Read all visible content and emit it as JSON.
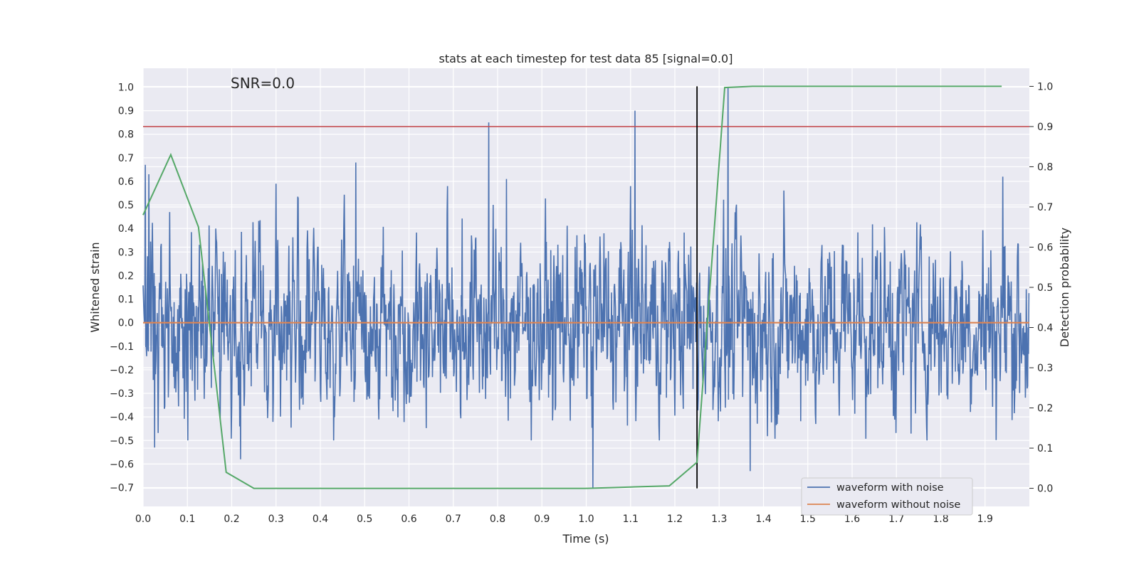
{
  "chart_data": {
    "type": "line",
    "title": "stats at each timestep for test data 85 [signal=0.0]",
    "annotation": "SNR=0.0",
    "xlabel": "Time (s)",
    "ylabel_left": "Whitened strain",
    "ylabel_right": "Detection probability",
    "xlim": [
      0.0,
      2.0
    ],
    "ylim_left": [
      -0.78,
      1.08
    ],
    "ylim_right": [
      -0.045,
      1.045
    ],
    "x_ticks": [
      "0.0",
      "0.1",
      "0.2",
      "0.3",
      "0.4",
      "0.5",
      "0.6",
      "0.7",
      "0.8",
      "0.9",
      "1.0",
      "1.1",
      "1.2",
      "1.3",
      "1.4",
      "1.5",
      "1.6",
      "1.7",
      "1.8",
      "1.9"
    ],
    "y_left_ticks": [
      "−0.7",
      "−0.6",
      "−0.5",
      "−0.4",
      "−0.3",
      "−0.2",
      "−0.1",
      "0.0",
      "0.1",
      "0.2",
      "0.3",
      "0.4",
      "0.5",
      "0.6",
      "0.7",
      "0.8",
      "0.9",
      "1.0"
    ],
    "y_right_ticks": [
      "0.0",
      "0.1",
      "0.2",
      "0.3",
      "0.4",
      "0.5",
      "0.6",
      "0.7",
      "0.8",
      "0.9",
      "1.0"
    ],
    "grid": true,
    "legend_position": "bottom-right",
    "series": [
      {
        "name": "waveform with noise",
        "axis": "left",
        "color": "#4c72b0",
        "kind": "noise",
        "n_samples": 2000,
        "spikes": [
          [
            0.005,
            0.67
          ],
          [
            0.013,
            0.63
          ],
          [
            0.78,
            0.85
          ],
          [
            1.11,
            0.9
          ],
          [
            1.32,
            1.0
          ],
          [
            1.015,
            -0.7
          ],
          [
            0.22,
            -0.58
          ],
          [
            1.37,
            -0.63
          ],
          [
            0.026,
            -0.53
          ],
          [
            0.48,
            0.68
          ],
          [
            0.82,
            0.61
          ],
          [
            1.94,
            0.62
          ],
          [
            0.3,
            0.59
          ]
        ]
      },
      {
        "name": "waveform without noise",
        "axis": "left",
        "color": "#dd8452",
        "x": [
          0.0,
          2.0
        ],
        "y": [
          0.0,
          0.0
        ]
      },
      {
        "name": "detection probability",
        "axis": "right",
        "color": "#55a868",
        "x": [
          0.0,
          0.0625,
          0.125,
          0.1875,
          0.25,
          0.3125,
          0.375,
          0.4375,
          0.5,
          0.5625,
          0.625,
          0.6875,
          0.75,
          0.8125,
          0.875,
          0.9375,
          1.0,
          1.0625,
          1.125,
          1.1875,
          1.25,
          1.3125,
          1.375,
          1.4375,
          1.5,
          1.5625,
          1.625,
          1.6875,
          1.75,
          1.8125,
          1.875,
          1.9375
        ],
        "y": [
          0.68,
          0.83,
          0.65,
          0.04,
          0.0,
          0.0,
          0.0,
          0.0,
          0.0,
          0.0,
          0.0,
          0.0,
          0.0,
          0.0,
          0.0,
          0.0,
          0.0,
          0.002,
          0.004,
          0.006,
          0.065,
          0.997,
          1.0,
          1.0,
          1.0,
          1.0,
          1.0,
          1.0,
          1.0,
          1.0,
          1.0,
          1.0
        ]
      }
    ],
    "threshold": {
      "axis": "right",
      "value": 0.9,
      "color": "#c44e52"
    },
    "event_marker": {
      "x": 1.25,
      "y_range": [
        0.0,
        1.0
      ],
      "axis": "right",
      "color": "#000000"
    }
  }
}
